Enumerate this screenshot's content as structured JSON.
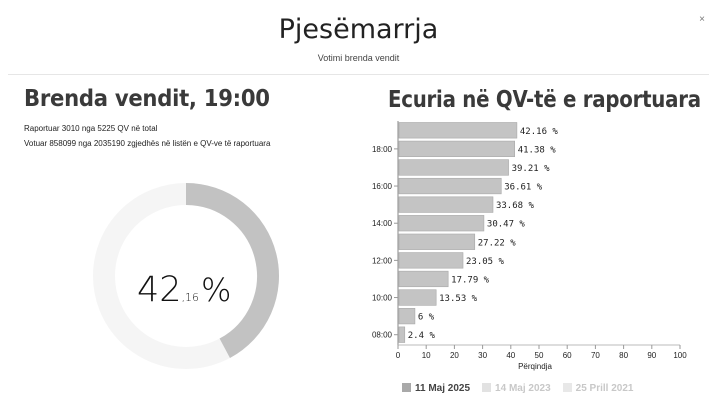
{
  "header": {
    "title": "Pjesëmarrja",
    "subtitle": "Votimi brenda vendit",
    "close_label": "×"
  },
  "left": {
    "title": "Brenda vendit, 19:00",
    "line1": "Raportuar 3010 nga 5225 QV në total",
    "line2": "Votuar 858099 nga 2035190 zgjedhës në listën e QV-ve të raportuara",
    "gauge": {
      "value": 42.16,
      "integer": "42",
      "decimal": ",16",
      "suffix": "%"
    }
  },
  "right": {
    "title": "Ecuria në QV-të e raportuara"
  },
  "colors": {
    "bar": "#c4c4c4",
    "bar_stroke": "#a8a8a8",
    "gauge_fill": "#c2c2c2",
    "gauge_track": "#f5f5f5",
    "legend_2025": "#a9a9a9",
    "legend_2023": "#e2e2e2",
    "legend_2021": "#e8e8e8"
  },
  "chart_data": {
    "type": "bar",
    "orientation": "horizontal",
    "xlabel": "Përqindja",
    "xlim": [
      0,
      100
    ],
    "xticks": [
      "0",
      "10",
      "20",
      "30",
      "40",
      "50",
      "60",
      "70",
      "80",
      "90",
      "100"
    ],
    "ytick_labels": [
      "18:00",
      "16:00",
      "14:00",
      "12:00",
      "10:00",
      "08:00"
    ],
    "series": [
      {
        "name": "11 Maj 2025",
        "values": [
          42.16,
          41.38,
          39.21,
          36.61,
          33.68,
          30.47,
          27.22,
          23.05,
          17.79,
          13.53,
          6,
          2.4
        ],
        "labels": [
          "42.16 %",
          "41.38 %",
          "39.21 %",
          "36.61 %",
          "33.68 %",
          "30.47 %",
          "27.22 %",
          "23.05 %",
          "17.79 %",
          "13.53 %",
          "6 %",
          "2.4 %"
        ]
      }
    ],
    "legend": [
      {
        "name": "11 Maj 2025",
        "color": "#a9a9a9",
        "active": true
      },
      {
        "name": "14 Maj 2023",
        "color": "#e2e2e2",
        "active": false
      },
      {
        "name": "25 Prill 2021",
        "color": "#e8e8e8",
        "active": false
      }
    ]
  }
}
